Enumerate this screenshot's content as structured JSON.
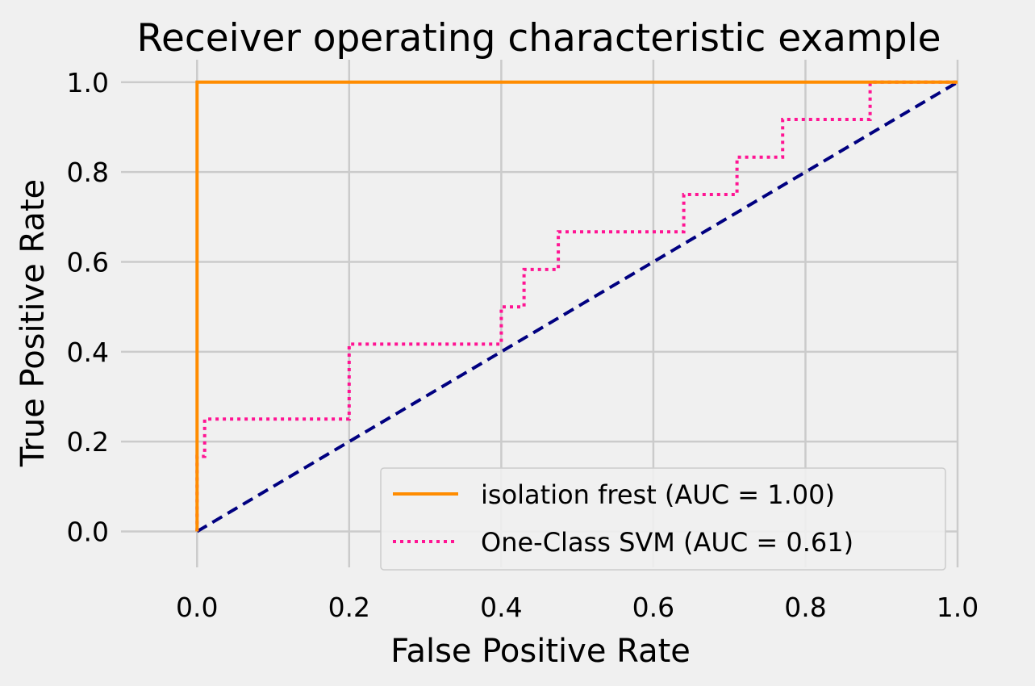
{
  "chart_data": {
    "type": "line",
    "title": "Receiver operating characteristic example",
    "xlabel": "False Positive Rate",
    "ylabel": "True Positive Rate",
    "xlim": [
      -0.1,
      1.0
    ],
    "ylim": [
      -0.08,
      1.05
    ],
    "grid": true,
    "legend_position": "lower-right",
    "xticks": [
      0.0,
      0.2,
      0.4,
      0.6,
      0.8,
      1.0
    ],
    "yticks": [
      0.0,
      0.2,
      0.4,
      0.6,
      0.8,
      1.0
    ],
    "xtick_labels": [
      "0.0",
      "0.2",
      "0.4",
      "0.6",
      "0.8",
      "1.0"
    ],
    "ytick_labels": [
      "0.0",
      "0.2",
      "0.4",
      "0.6",
      "0.8",
      "1.0"
    ],
    "series": [
      {
        "name": "isolation frest (AUC = 1.00)",
        "color": "#ff8c00",
        "style": "solid",
        "x": [
          0.0,
          0.0,
          1.0
        ],
        "y": [
          0.0,
          1.0,
          1.0
        ]
      },
      {
        "name": "One-Class SVM (AUC = 0.61)",
        "color": "#ff1493",
        "style": "dotted",
        "x": [
          0.0,
          0.0,
          0.01,
          0.01,
          0.2,
          0.2,
          0.2,
          0.4,
          0.4,
          0.43,
          0.43,
          0.475,
          0.475,
          0.64,
          0.64,
          0.71,
          0.71,
          0.77,
          0.77,
          0.885,
          0.885,
          1.0
        ],
        "y": [
          0.0,
          0.167,
          0.167,
          0.25,
          0.25,
          0.333,
          0.417,
          0.417,
          0.5,
          0.5,
          0.583,
          0.583,
          0.667,
          0.667,
          0.75,
          0.75,
          0.833,
          0.833,
          0.917,
          0.917,
          1.0,
          1.0
        ]
      },
      {
        "name": "",
        "color": "#000080",
        "style": "dashed",
        "x": [
          0.0,
          1.0
        ],
        "y": [
          0.0,
          1.0
        ]
      }
    ]
  }
}
